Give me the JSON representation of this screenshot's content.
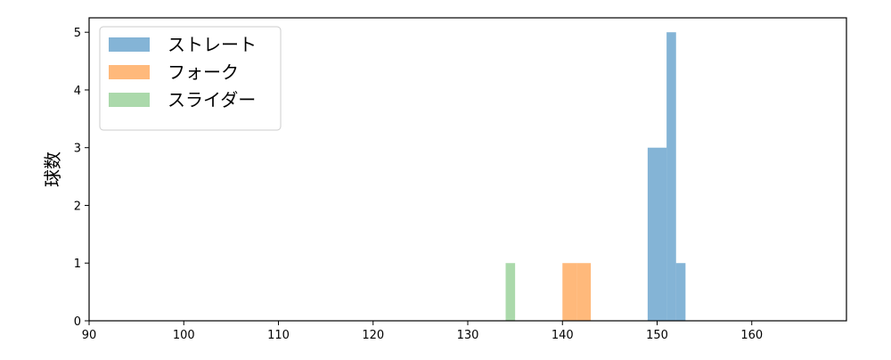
{
  "chart_data": {
    "type": "bar",
    "subtype": "histogram",
    "ylabel": "球数",
    "xlabel": "",
    "xlim": [
      90,
      170
    ],
    "ylim": [
      0,
      5.25
    ],
    "xticks": [
      90,
      100,
      110,
      120,
      130,
      140,
      150,
      160
    ],
    "yticks": [
      0,
      1,
      2,
      3,
      4,
      5
    ],
    "grid": false,
    "legend_placement": "top-left",
    "series": [
      {
        "name": "ストレート",
        "color": "#1f77b4",
        "opacity": 0.55,
        "bins": [
          {
            "x0": 149,
            "x1": 150,
            "count": 3
          },
          {
            "x0": 150,
            "x1": 151,
            "count": 3
          },
          {
            "x0": 151,
            "x1": 152,
            "count": 5
          },
          {
            "x0": 152,
            "x1": 153,
            "count": 1
          }
        ]
      },
      {
        "name": "フォーク",
        "color": "#ff7f0e",
        "opacity": 0.55,
        "bins": [
          {
            "x0": 140,
            "x1": 141.5,
            "count": 1
          },
          {
            "x0": 141.5,
            "x1": 143,
            "count": 1
          }
        ]
      },
      {
        "name": "スライダー",
        "color": "#2ca02c",
        "opacity": 0.4,
        "bins": [
          {
            "x0": 134,
            "x1": 135,
            "count": 1
          }
        ]
      }
    ]
  }
}
